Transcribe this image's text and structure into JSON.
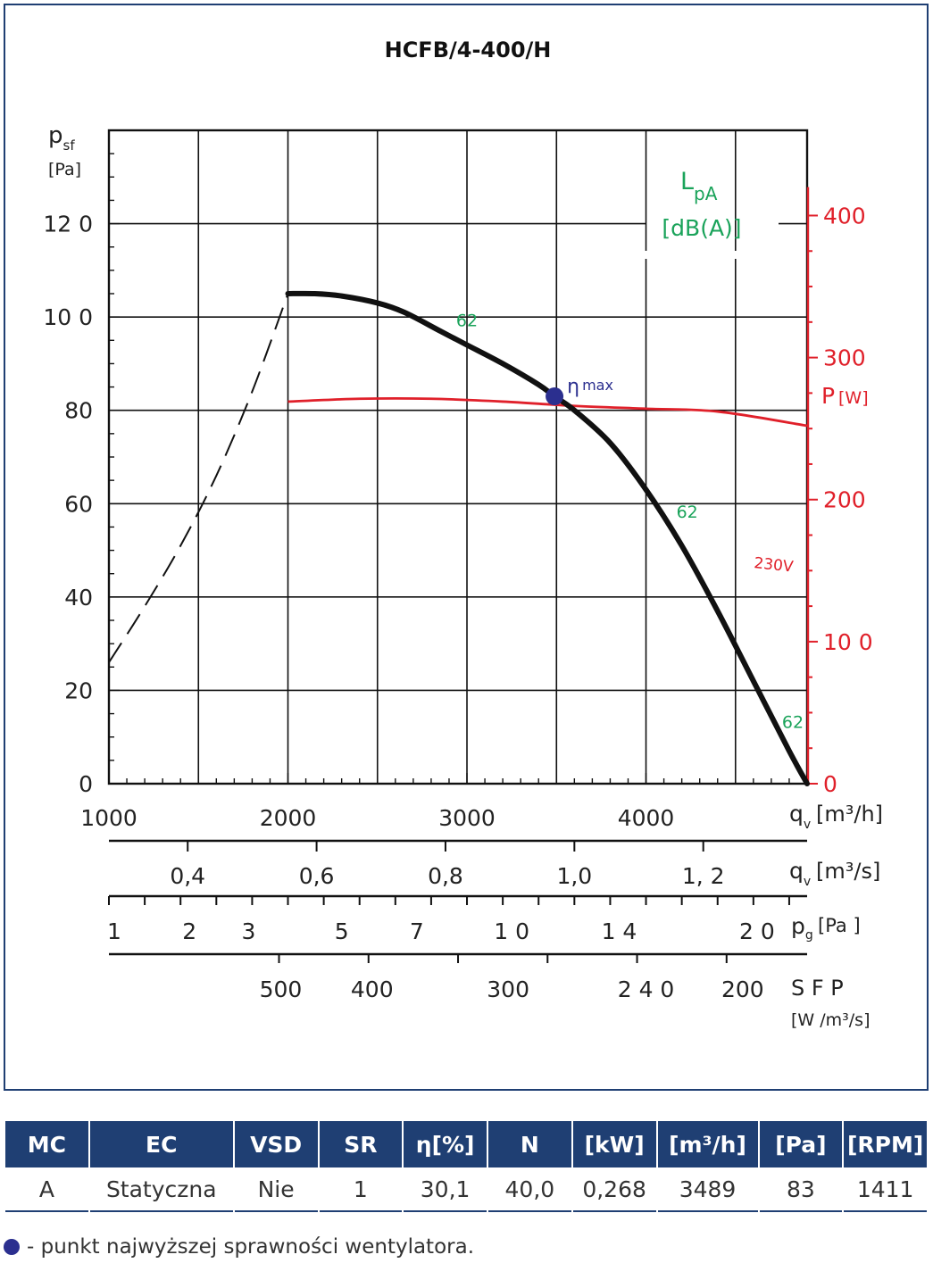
{
  "chart_data": {
    "type": "line",
    "title": "HCFB/4-400/H",
    "ylabel": "psf",
    "ylabel_sub": "sf",
    "ylabel_main": "p",
    "yunit": "[Pa]",
    "ylim": [
      0,
      140
    ],
    "y_ticks": [
      {
        "value": 0,
        "label": "0"
      },
      {
        "value": 20,
        "label": "20"
      },
      {
        "value": 40,
        "label": "40"
      },
      {
        "value": 60,
        "label": "60"
      },
      {
        "value": 80,
        "label": "80"
      },
      {
        "value": 100,
        "label": "10 0"
      },
      {
        "value": 120,
        "label": "12 0"
      }
    ],
    "xlim": [
      1000,
      4900
    ],
    "x_ticks": [
      {
        "value": 1000,
        "label": "1000"
      },
      {
        "value": 2000,
        "label": "2000"
      },
      {
        "value": 3000,
        "label": "3000"
      },
      {
        "value": 4000,
        "label": "4000"
      }
    ],
    "x_unit_main": "q",
    "x_unit_sub": "v",
    "x_unit": "[m³/h]",
    "pressure_curve": {
      "x": [
        2000,
        2150,
        2300,
        2500,
        2650,
        2850,
        3000,
        3200,
        3400,
        3489,
        3600,
        3800,
        4000,
        4200,
        4400,
        4600,
        4800,
        4900
      ],
      "y": [
        105,
        105,
        104.5,
        103,
        101,
        97,
        94,
        90,
        85.5,
        83,
        80,
        73,
        63,
        51,
        37,
        22,
        7,
        0
      ]
    },
    "system_curve": {
      "x": [
        1000,
        1200,
        1400,
        1600,
        1800,
        2000
      ],
      "y": [
        26,
        38,
        51,
        66,
        84,
        105
      ]
    },
    "power_axis": {
      "label_main": "P",
      "label_unit": "[W]",
      "ylim": [
        0,
        460
      ],
      "ticks": [
        {
          "value": 0,
          "label": "0"
        },
        {
          "value": 100,
          "label": "10 0"
        },
        {
          "value": 200,
          "label": "200"
        },
        {
          "value": 300,
          "label": "300"
        },
        {
          "value": 400,
          "label": "400"
        }
      ]
    },
    "power_series": {
      "name": "230V",
      "x": [
        2000,
        2400,
        2800,
        3200,
        3600,
        4000,
        4400,
        4900
      ],
      "y": [
        269,
        271,
        271,
        269,
        266,
        264,
        262,
        252
      ]
    },
    "lpa_label_top": "L",
    "lpa_label_sub": "pA",
    "lpa_unit": "[dB(A)]",
    "lpa_labels": [
      {
        "text": "62",
        "x": 3000,
        "y": 98
      },
      {
        "text": "62",
        "x": 4230,
        "y": 57
      },
      {
        "text": "62",
        "x": 4820,
        "y": 12
      }
    ],
    "eta_max": {
      "x": 3489,
      "y": 83,
      "label_main": "η",
      "label_sub": "max"
    },
    "secondary_scales": [
      {
        "name": "qv_m3s",
        "unit_main": "q",
        "unit_sub": "v",
        "unit": "[m³/s]",
        "ticks": [
          {
            "value": 0.4,
            "label": "0,4"
          },
          {
            "value": 0.6,
            "label": "0,6"
          },
          {
            "value": 0.8,
            "label": "0,8"
          },
          {
            "value": 1.0,
            "label": "1,0"
          },
          {
            "value": 1.2,
            "label": "1, 2"
          }
        ]
      },
      {
        "name": "pg",
        "unit_main": "p",
        "unit_sub": "g",
        "unit": "[Pa ]",
        "ticks": [
          {
            "value": 1,
            "label": "1",
            "qv": 1030
          },
          {
            "value": 2,
            "label": "2",
            "qv": 1450
          },
          {
            "value": 3,
            "label": "3",
            "qv": 1780
          },
          {
            "value": 5,
            "label": "5",
            "qv": 2300
          },
          {
            "value": 7,
            "label": "7",
            "qv": 2720
          },
          {
            "value": 10,
            "label": "1 0",
            "qv": 3250
          },
          {
            "value": 14,
            "label": "1 4",
            "qv": 3850
          },
          {
            "value": 20,
            "label": "2 0",
            "qv": 4620
          }
        ]
      },
      {
        "name": "sfp",
        "unit_main": "S F P",
        "unit": "[W /m³/s]",
        "ticks": [
          {
            "value": 500,
            "label": "500",
            "qv": 1960
          },
          {
            "value": 400,
            "label": "400",
            "qv": 2470
          },
          {
            "value": 300,
            "label": "300",
            "qv": 3230
          },
          {
            "value": 240,
            "label": "2 4 0",
            "qv": 4000
          },
          {
            "value": 200,
            "label": "200",
            "qv": 4540
          }
        ]
      }
    ]
  },
  "table": {
    "headers": [
      "MC",
      "EC",
      "VSD",
      "SR",
      "η[%]",
      "N",
      "[kW]",
      "[m³/h]",
      "[Pa]",
      "[RPM]"
    ],
    "row": [
      "A",
      "Statyczna",
      "Nie",
      "1",
      "30,1",
      "40,0",
      "0,268",
      "3489",
      "83",
      "1411"
    ]
  },
  "legend_note": "- punkt najwyższej sprawności wentylatora.",
  "colors": {
    "frame": "#1f3f73",
    "pressure": "#111111",
    "power": "#e0202a",
    "lpa": "#1aa35a",
    "eta": "#2b2f8f"
  }
}
